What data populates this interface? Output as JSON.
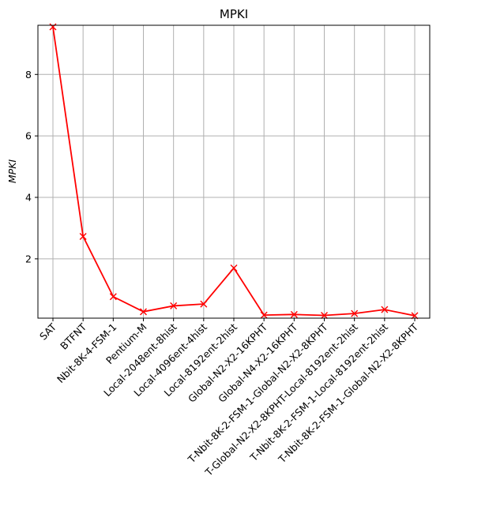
{
  "chart_data": {
    "type": "line",
    "title": "MPKI",
    "xlabel": "",
    "ylabel": "MPKI",
    "categories": [
      "SAT",
      "BTFNT",
      "Nbit-8K-4-FSM-1",
      "Pentium-M",
      "Local-2048ent-8hist",
      "Local-4096ent-4hist",
      "Local-8192ent-2hist",
      "Global-N2-X2-16KPHT",
      "Global-N4-X2-16KPHT",
      "T-Nbit-8K-2-FSM-1-Global-N2-X2-8KPHT",
      "T-Global-N2-X2-8KPHT-Local-8192ent-2hist",
      "T-Nbit-8K-2-FSM-1-Local-8192ent-2hist",
      "T-Nbit-8K-2-FSM-1-Global-N2-X2-8KPHT"
    ],
    "series": [
      {
        "values": [
          9.55,
          2.73,
          0.77,
          0.28,
          0.47,
          0.53,
          1.7,
          0.17,
          0.19,
          0.16,
          0.22,
          0.35,
          0.15
        ]
      }
    ],
    "ylim": [
      0.07,
      9.6
    ],
    "yticks": [
      2,
      4,
      6,
      8
    ],
    "grid": true,
    "colors": {
      "series": "#ff0000",
      "grid": "#b0b0b0",
      "axes": "#000000"
    },
    "marker": "x"
  }
}
